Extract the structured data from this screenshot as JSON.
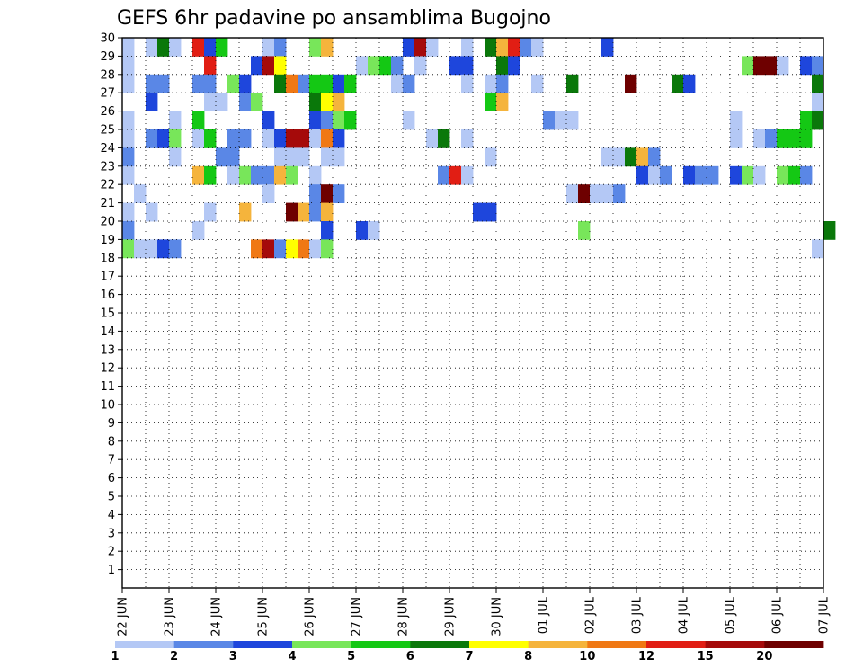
{
  "chart_data": {
    "type": "heatmap",
    "title": "GEFS 6hr padavine po ansamblima Bugojno",
    "xlabel": "",
    "ylabel": "",
    "x_ticks": [
      "22 JUN",
      "23 JUN",
      "24 JUN",
      "25 JUN",
      "26 JUN",
      "27 JUN",
      "28 JUN",
      "29 JUN",
      "30 JUN",
      "01 JUL",
      "02 JUL",
      "03 JUL",
      "04 JUL",
      "05 JUL",
      "06 JUL",
      "07 JUL"
    ],
    "y_ticks": [
      1,
      2,
      3,
      4,
      5,
      6,
      7,
      8,
      9,
      10,
      11,
      12,
      13,
      14,
      15,
      16,
      17,
      18,
      19,
      20,
      21,
      22,
      23,
      24,
      25,
      26,
      27,
      28,
      29,
      30
    ],
    "ylim": [
      0,
      30
    ],
    "grid": true,
    "colorbar": {
      "labels": [
        "1",
        "2",
        "3",
        "4",
        "5",
        "6",
        "7",
        "8",
        "10",
        "12",
        "15",
        "20"
      ],
      "colors": [
        "#b4c8f5",
        "#5a87e6",
        "#1e46dc",
        "#78e65a",
        "#14c814",
        "#0a780a",
        "#ffff00",
        "#f5b43c",
        "#f07814",
        "#e11e14",
        "#a50a0a",
        "#6e0000"
      ]
    },
    "cells": [
      {
        "d": "2025-06-22T00",
        "m": 30,
        "c": 1
      },
      {
        "d": "2025-06-22T12",
        "m": 30,
        "c": 1
      },
      {
        "d": "2025-06-22T18",
        "m": 30,
        "c": 6
      },
      {
        "d": "2025-06-23T00",
        "m": 30,
        "c": 1
      },
      {
        "d": "2025-06-23T12",
        "m": 30,
        "c": 10
      },
      {
        "d": "2025-06-23T18",
        "m": 30,
        "c": 3
      },
      {
        "d": "2025-06-24T00",
        "m": 30,
        "c": 5
      },
      {
        "d": "2025-06-25T00",
        "m": 30,
        "c": 1
      },
      {
        "d": "2025-06-25T06",
        "m": 30,
        "c": 2
      },
      {
        "d": "2025-06-26T00",
        "m": 30,
        "c": 4
      },
      {
        "d": "2025-06-26T06",
        "m": 30,
        "c": 8
      },
      {
        "d": "2025-06-28T00",
        "m": 30,
        "c": 3
      },
      {
        "d": "2025-06-28T06",
        "m": 30,
        "c": 11
      },
      {
        "d": "2025-06-28T12",
        "m": 30,
        "c": 1
      },
      {
        "d": "2025-06-29T06",
        "m": 30,
        "c": 1
      },
      {
        "d": "2025-06-29T18",
        "m": 30,
        "c": 6
      },
      {
        "d": "2025-06-30T00",
        "m": 30,
        "c": 8
      },
      {
        "d": "2025-06-30T06",
        "m": 30,
        "c": 10
      },
      {
        "d": "2025-06-30T12",
        "m": 30,
        "c": 2
      },
      {
        "d": "2025-06-30T18",
        "m": 30,
        "c": 1
      },
      {
        "d": "2025-07-02T06",
        "m": 30,
        "c": 3
      },
      {
        "d": "2025-06-22T00",
        "m": 29,
        "c": 1
      },
      {
        "d": "2025-06-23T18",
        "m": 29,
        "c": 10
      },
      {
        "d": "2025-06-24T18",
        "m": 29,
        "c": 3
      },
      {
        "d": "2025-06-25T00",
        "m": 29,
        "c": 11
      },
      {
        "d": "2025-06-25T06",
        "m": 29,
        "c": 7
      },
      {
        "d": "2025-06-27T00",
        "m": 29,
        "c": 1
      },
      {
        "d": "2025-06-27T06",
        "m": 29,
        "c": 4
      },
      {
        "d": "2025-06-27T12",
        "m": 29,
        "c": 5
      },
      {
        "d": "2025-06-27T18",
        "m": 29,
        "c": 2
      },
      {
        "d": "2025-06-28T06",
        "m": 29,
        "c": 1
      },
      {
        "d": "2025-06-29T00",
        "m": 29,
        "c": 3
      },
      {
        "d": "2025-06-29T06",
        "m": 29,
        "c": 3
      },
      {
        "d": "2025-06-30T00",
        "m": 29,
        "c": 6
      },
      {
        "d": "2025-06-30T06",
        "m": 29,
        "c": 3
      },
      {
        "d": "2025-07-05T06",
        "m": 29,
        "c": 4
      },
      {
        "d": "2025-07-05T12",
        "m": 29,
        "c": 12
      },
      {
        "d": "2025-07-05T18",
        "m": 29,
        "c": 12
      },
      {
        "d": "2025-07-06T00",
        "m": 29,
        "c": 1
      },
      {
        "d": "2025-07-06T12",
        "m": 29,
        "c": 3
      },
      {
        "d": "2025-07-06T18",
        "m": 29,
        "c": 2
      },
      {
        "d": "2025-06-22T00",
        "m": 28,
        "c": 1
      },
      {
        "d": "2025-06-22T12",
        "m": 28,
        "c": 2
      },
      {
        "d": "2025-06-22T18",
        "m": 28,
        "c": 2
      },
      {
        "d": "2025-06-23T12",
        "m": 28,
        "c": 2
      },
      {
        "d": "2025-06-23T18",
        "m": 28,
        "c": 2
      },
      {
        "d": "2025-06-24T06",
        "m": 28,
        "c": 4
      },
      {
        "d": "2025-06-24T12",
        "m": 28,
        "c": 3
      },
      {
        "d": "2025-06-25T06",
        "m": 28,
        "c": 6
      },
      {
        "d": "2025-06-25T12",
        "m": 28,
        "c": 9
      },
      {
        "d": "2025-06-25T18",
        "m": 28,
        "c": 2
      },
      {
        "d": "2025-06-26T00",
        "m": 28,
        "c": 5
      },
      {
        "d": "2025-06-26T06",
        "m": 28,
        "c": 5
      },
      {
        "d": "2025-06-26T12",
        "m": 28,
        "c": 3
      },
      {
        "d": "2025-06-26T18",
        "m": 28,
        "c": 5
      },
      {
        "d": "2025-06-27T18",
        "m": 28,
        "c": 1
      },
      {
        "d": "2025-06-28T00",
        "m": 28,
        "c": 2
      },
      {
        "d": "2025-06-29T06",
        "m": 28,
        "c": 1
      },
      {
        "d": "2025-06-29T18",
        "m": 28,
        "c": 1
      },
      {
        "d": "2025-06-30T00",
        "m": 28,
        "c": 2
      },
      {
        "d": "2025-06-30T18",
        "m": 28,
        "c": 1
      },
      {
        "d": "2025-07-01T12",
        "m": 28,
        "c": 6
      },
      {
        "d": "2025-07-02T18",
        "m": 28,
        "c": 12
      },
      {
        "d": "2025-07-03T18",
        "m": 28,
        "c": 6
      },
      {
        "d": "2025-07-04T00",
        "m": 28,
        "c": 3
      },
      {
        "d": "2025-07-06T18",
        "m": 28,
        "c": 6
      },
      {
        "d": "2025-06-22T12",
        "m": 27,
        "c": 3
      },
      {
        "d": "2025-06-23T18",
        "m": 27,
        "c": 1
      },
      {
        "d": "2025-06-24T00",
        "m": 27,
        "c": 1
      },
      {
        "d": "2025-06-24T12",
        "m": 27,
        "c": 2
      },
      {
        "d": "2025-06-24T18",
        "m": 27,
        "c": 4
      },
      {
        "d": "2025-06-26T00",
        "m": 27,
        "c": 6
      },
      {
        "d": "2025-06-26T06",
        "m": 27,
        "c": 7
      },
      {
        "d": "2025-06-26T12",
        "m": 27,
        "c": 8
      },
      {
        "d": "2025-06-29T18",
        "m": 27,
        "c": 5
      },
      {
        "d": "2025-06-30T00",
        "m": 27,
        "c": 8
      },
      {
        "d": "2025-07-06T18",
        "m": 27,
        "c": 1
      },
      {
        "d": "2025-06-22T00",
        "m": 26,
        "c": 1
      },
      {
        "d": "2025-06-23T00",
        "m": 26,
        "c": 1
      },
      {
        "d": "2025-06-23T12",
        "m": 26,
        "c": 5
      },
      {
        "d": "2025-06-25T00",
        "m": 26,
        "c": 3
      },
      {
        "d": "2025-06-26T00",
        "m": 26,
        "c": 3
      },
      {
        "d": "2025-06-26T06",
        "m": 26,
        "c": 2
      },
      {
        "d": "2025-06-26T12",
        "m": 26,
        "c": 4
      },
      {
        "d": "2025-06-26T18",
        "m": 26,
        "c": 5
      },
      {
        "d": "2025-06-28T00",
        "m": 26,
        "c": 1
      },
      {
        "d": "2025-07-01T00",
        "m": 26,
        "c": 2
      },
      {
        "d": "2025-07-01T06",
        "m": 26,
        "c": 1
      },
      {
        "d": "2025-07-01T12",
        "m": 26,
        "c": 1
      },
      {
        "d": "2025-07-05T00",
        "m": 26,
        "c": 1
      },
      {
        "d": "2025-07-06T12",
        "m": 26,
        "c": 5
      },
      {
        "d": "2025-07-06T18",
        "m": 26,
        "c": 6
      },
      {
        "d": "2025-06-22T00",
        "m": 25,
        "c": 1
      },
      {
        "d": "2025-06-22T12",
        "m": 25,
        "c": 2
      },
      {
        "d": "2025-06-22T18",
        "m": 25,
        "c": 3
      },
      {
        "d": "2025-06-23T00",
        "m": 25,
        "c": 4
      },
      {
        "d": "2025-06-23T12",
        "m": 25,
        "c": 1
      },
      {
        "d": "2025-06-23T18",
        "m": 25,
        "c": 5
      },
      {
        "d": "2025-06-24T06",
        "m": 25,
        "c": 2
      },
      {
        "d": "2025-06-24T12",
        "m": 25,
        "c": 2
      },
      {
        "d": "2025-06-25T00",
        "m": 25,
        "c": 1
      },
      {
        "d": "2025-06-25T06",
        "m": 25,
        "c": 3
      },
      {
        "d": "2025-06-25T12",
        "m": 25,
        "c": 11
      },
      {
        "d": "2025-06-25T18",
        "m": 25,
        "c": 11
      },
      {
        "d": "2025-06-26T00",
        "m": 25,
        "c": 1
      },
      {
        "d": "2025-06-26T06",
        "m": 25,
        "c": 9
      },
      {
        "d": "2025-06-26T12",
        "m": 25,
        "c": 3
      },
      {
        "d": "2025-06-28T12",
        "m": 25,
        "c": 1
      },
      {
        "d": "2025-06-28T18",
        "m": 25,
        "c": 6
      },
      {
        "d": "2025-06-29T06",
        "m": 25,
        "c": 1
      },
      {
        "d": "2025-07-05T00",
        "m": 25,
        "c": 1
      },
      {
        "d": "2025-07-05T12",
        "m": 25,
        "c": 1
      },
      {
        "d": "2025-07-05T18",
        "m": 25,
        "c": 2
      },
      {
        "d": "2025-07-06T00",
        "m": 25,
        "c": 5
      },
      {
        "d": "2025-07-06T06",
        "m": 25,
        "c": 5
      },
      {
        "d": "2025-07-06T12",
        "m": 25,
        "c": 5
      },
      {
        "d": "2025-06-22T00",
        "m": 24,
        "c": 2
      },
      {
        "d": "2025-06-23T00",
        "m": 24,
        "c": 1
      },
      {
        "d": "2025-06-24T00",
        "m": 24,
        "c": 2
      },
      {
        "d": "2025-06-24T06",
        "m": 24,
        "c": 2
      },
      {
        "d": "2025-06-25T06",
        "m": 24,
        "c": 1
      },
      {
        "d": "2025-06-25T12",
        "m": 24,
        "c": 1
      },
      {
        "d": "2025-06-25T18",
        "m": 24,
        "c": 1
      },
      {
        "d": "2025-06-26T06",
        "m": 24,
        "c": 1
      },
      {
        "d": "2025-06-26T12",
        "m": 24,
        "c": 1
      },
      {
        "d": "2025-06-29T18",
        "m": 24,
        "c": 1
      },
      {
        "d": "2025-07-02T06",
        "m": 24,
        "c": 1
      },
      {
        "d": "2025-07-02T12",
        "m": 24,
        "c": 1
      },
      {
        "d": "2025-07-02T18",
        "m": 24,
        "c": 6
      },
      {
        "d": "2025-07-03T00",
        "m": 24,
        "c": 8
      },
      {
        "d": "2025-07-03T06",
        "m": 24,
        "c": 2
      },
      {
        "d": "2025-06-22T00",
        "m": 23,
        "c": 1
      },
      {
        "d": "2025-06-23T12",
        "m": 23,
        "c": 8
      },
      {
        "d": "2025-06-23T18",
        "m": 23,
        "c": 5
      },
      {
        "d": "2025-06-24T06",
        "m": 23,
        "c": 1
      },
      {
        "d": "2025-06-24T12",
        "m": 23,
        "c": 4
      },
      {
        "d": "2025-06-24T18",
        "m": 23,
        "c": 2
      },
      {
        "d": "2025-06-25T00",
        "m": 23,
        "c": 2
      },
      {
        "d": "2025-06-25T06",
        "m": 23,
        "c": 8
      },
      {
        "d": "2025-06-25T12",
        "m": 23,
        "c": 4
      },
      {
        "d": "2025-06-26T00",
        "m": 23,
        "c": 1
      },
      {
        "d": "2025-06-28T18",
        "m": 23,
        "c": 2
      },
      {
        "d": "2025-06-29T00",
        "m": 23,
        "c": 10
      },
      {
        "d": "2025-06-29T06",
        "m": 23,
        "c": 1
      },
      {
        "d": "2025-07-03T00",
        "m": 23,
        "c": 3
      },
      {
        "d": "2025-07-03T06",
        "m": 23,
        "c": 1
      },
      {
        "d": "2025-07-03T12",
        "m": 23,
        "c": 2
      },
      {
        "d": "2025-07-04T00",
        "m": 23,
        "c": 3
      },
      {
        "d": "2025-07-04T06",
        "m": 23,
        "c": 2
      },
      {
        "d": "2025-07-04T12",
        "m": 23,
        "c": 2
      },
      {
        "d": "2025-07-05T00",
        "m": 23,
        "c": 3
      },
      {
        "d": "2025-07-05T06",
        "m": 23,
        "c": 4
      },
      {
        "d": "2025-07-05T12",
        "m": 23,
        "c": 1
      },
      {
        "d": "2025-07-06T00",
        "m": 23,
        "c": 4
      },
      {
        "d": "2025-07-06T06",
        "m": 23,
        "c": 5
      },
      {
        "d": "2025-07-06T12",
        "m": 23,
        "c": 2
      },
      {
        "d": "2025-06-22T06",
        "m": 22,
        "c": 1
      },
      {
        "d": "2025-06-25T00",
        "m": 22,
        "c": 1
      },
      {
        "d": "2025-06-26T00",
        "m": 22,
        "c": 2
      },
      {
        "d": "2025-06-26T06",
        "m": 22,
        "c": 12
      },
      {
        "d": "2025-06-26T12",
        "m": 22,
        "c": 2
      },
      {
        "d": "2025-07-01T12",
        "m": 22,
        "c": 1
      },
      {
        "d": "2025-07-01T18",
        "m": 22,
        "c": 12
      },
      {
        "d": "2025-07-02T00",
        "m": 22,
        "c": 1
      },
      {
        "d": "2025-07-02T06",
        "m": 22,
        "c": 1
      },
      {
        "d": "2025-07-02T12",
        "m": 22,
        "c": 2
      },
      {
        "d": "2025-06-22T00",
        "m": 21,
        "c": 1
      },
      {
        "d": "2025-06-22T12",
        "m": 21,
        "c": 1
      },
      {
        "d": "2025-06-23T18",
        "m": 21,
        "c": 1
      },
      {
        "d": "2025-06-24T12",
        "m": 21,
        "c": 8
      },
      {
        "d": "2025-06-25T12",
        "m": 21,
        "c": 12
      },
      {
        "d": "2025-06-25T18",
        "m": 21,
        "c": 8
      },
      {
        "d": "2025-06-26T00",
        "m": 21,
        "c": 2
      },
      {
        "d": "2025-06-26T06",
        "m": 21,
        "c": 8
      },
      {
        "d": "2025-06-29T12",
        "m": 21,
        "c": 3
      },
      {
        "d": "2025-06-29T18",
        "m": 21,
        "c": 3
      },
      {
        "d": "2025-06-22T00",
        "m": 20,
        "c": 2
      },
      {
        "d": "2025-06-23T12",
        "m": 20,
        "c": 1
      },
      {
        "d": "2025-06-26T06",
        "m": 20,
        "c": 3
      },
      {
        "d": "2025-06-27T00",
        "m": 20,
        "c": 3
      },
      {
        "d": "2025-06-27T06",
        "m": 20,
        "c": 1
      },
      {
        "d": "2025-07-01T18",
        "m": 20,
        "c": 4
      },
      {
        "d": "2025-07-07T00",
        "m": 20,
        "c": 6
      },
      {
        "d": "2025-06-22T00",
        "m": 19,
        "c": 4
      },
      {
        "d": "2025-06-22T06",
        "m": 19,
        "c": 1
      },
      {
        "d": "2025-06-22T12",
        "m": 19,
        "c": 1
      },
      {
        "d": "2025-06-22T18",
        "m": 19,
        "c": 3
      },
      {
        "d": "2025-06-23T00",
        "m": 19,
        "c": 2
      },
      {
        "d": "2025-06-24T18",
        "m": 19,
        "c": 9
      },
      {
        "d": "2025-06-25T00",
        "m": 19,
        "c": 11
      },
      {
        "d": "2025-06-25T06",
        "m": 19,
        "c": 2
      },
      {
        "d": "2025-06-25T12",
        "m": 19,
        "c": 7
      },
      {
        "d": "2025-06-25T18",
        "m": 19,
        "c": 9
      },
      {
        "d": "2025-06-26T00",
        "m": 19,
        "c": 1
      },
      {
        "d": "2025-06-26T06",
        "m": 19,
        "c": 4
      },
      {
        "d": "2025-07-06T18",
        "m": 19,
        "c": 1
      }
    ]
  }
}
